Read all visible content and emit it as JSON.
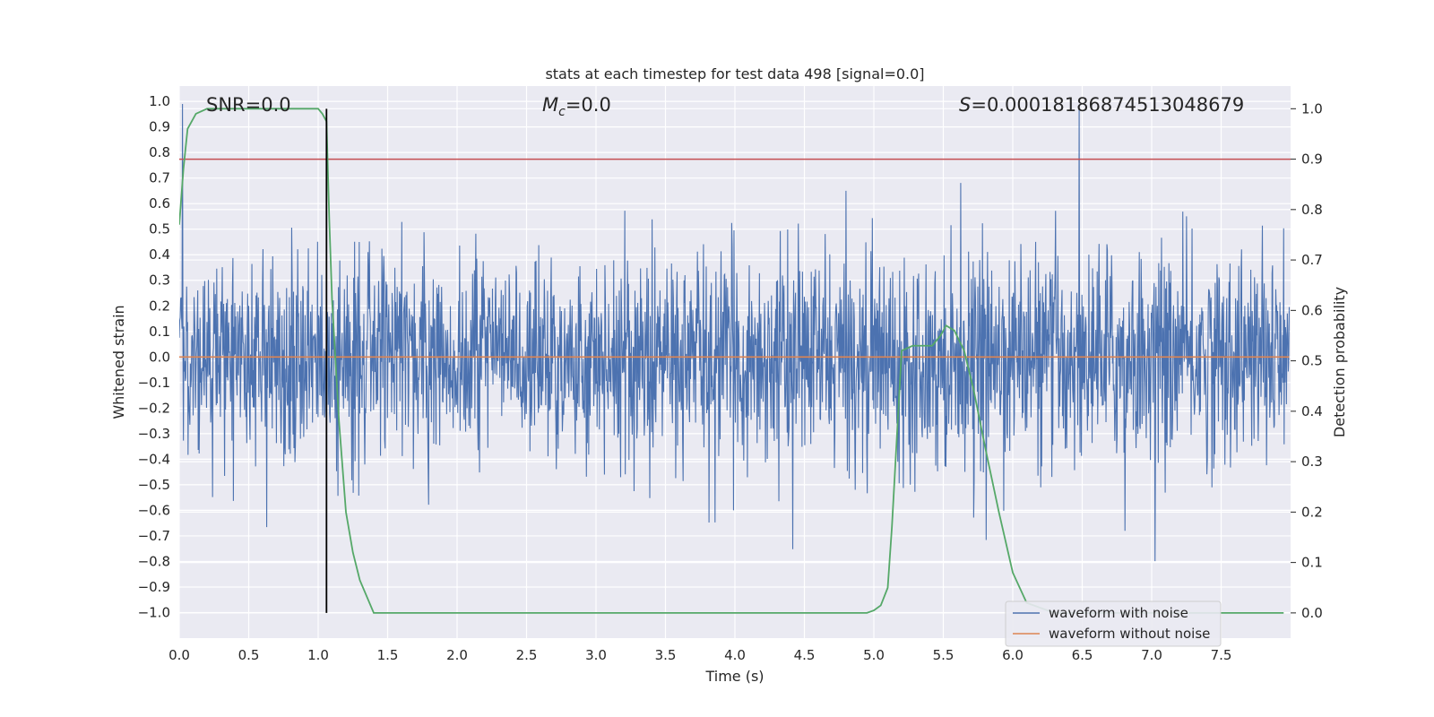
{
  "chart_data": {
    "type": "line",
    "title": "stats at each timestep for test data 498 [signal=0.0]",
    "xlabel": "Time (s)",
    "ylabel": "Whitened strain",
    "y2label": "Detection probability",
    "xlim": [
      0.0,
      8.0
    ],
    "ylim": [
      -1.1,
      1.06
    ],
    "y2lim": [
      -0.05,
      1.045
    ],
    "x_ticks": [
      "0.0",
      "0.5",
      "1.0",
      "1.5",
      "2.0",
      "2.5",
      "3.0",
      "3.5",
      "4.0",
      "4.5",
      "5.0",
      "5.5",
      "6.0",
      "6.5",
      "7.0",
      "7.5"
    ],
    "y_ticks": [
      "1.0",
      "0.9",
      "0.8",
      "0.7",
      "0.6",
      "0.5",
      "0.4",
      "0.3",
      "0.2",
      "0.1",
      "0.0",
      "−0.1",
      "−0.2",
      "−0.3",
      "−0.4",
      "−0.5",
      "−0.6",
      "−0.7",
      "−0.8",
      "−0.9",
      "−1.0"
    ],
    "y2_ticks": [
      "1.0",
      "0.9",
      "0.8",
      "0.7",
      "0.6",
      "0.5",
      "0.4",
      "0.3",
      "0.2",
      "0.1",
      "0.0"
    ],
    "grid": true,
    "legend_position": "lower-right",
    "annotations": {
      "snr": "SNR=0.0",
      "mc_symbol": "M",
      "mc_sub": "c",
      "mc_value": "=0.0",
      "s_symbol": "S",
      "s_value": "=0.00018186874513048679"
    },
    "series": [
      {
        "name": "waveform with noise",
        "color": "#4c72b0",
        "description_values": "noisy whitened strain spanning roughly -1.0 to 1.0 across 0–8 s"
      },
      {
        "name": "waveform without noise",
        "color": "#dd8452",
        "y_value": 0.0
      },
      {
        "name": "detection probability",
        "color": "#55a868",
        "axis": "right",
        "x": [
          0.0,
          0.03,
          0.06,
          0.12,
          0.2,
          0.4,
          0.6,
          0.8,
          1.0,
          1.03,
          1.06,
          1.08,
          1.1,
          1.15,
          1.2,
          1.25,
          1.3,
          1.4,
          1.6,
          2.0,
          3.0,
          4.0,
          4.5,
          4.8,
          4.9,
          4.95,
          5.0,
          5.05,
          5.1,
          5.13,
          5.2,
          5.28,
          5.35,
          5.42,
          5.48,
          5.52,
          5.58,
          5.65,
          5.72,
          5.8,
          5.9,
          6.0,
          6.1,
          6.3,
          7.0,
          7.5,
          7.95
        ],
        "y": [
          0.77,
          0.88,
          0.96,
          0.99,
          1.0,
          1.0,
          1.0,
          1.0,
          1.0,
          0.99,
          0.975,
          0.78,
          0.62,
          0.38,
          0.2,
          0.12,
          0.065,
          0.0,
          0.0,
          0.0,
          0.0,
          0.0,
          0.0,
          0.0,
          0.0,
          0.0,
          0.005,
          0.015,
          0.05,
          0.17,
          0.52,
          0.53,
          0.53,
          0.53,
          0.55,
          0.57,
          0.56,
          0.52,
          0.44,
          0.33,
          0.2,
          0.08,
          0.02,
          0.0,
          0.0,
          0.0,
          0.0
        ]
      }
    ],
    "threshold": {
      "color": "#c44e52",
      "y_value": 0.9,
      "axis": "right"
    },
    "event_marker": {
      "color": "#000000",
      "x": 1.06
    }
  }
}
